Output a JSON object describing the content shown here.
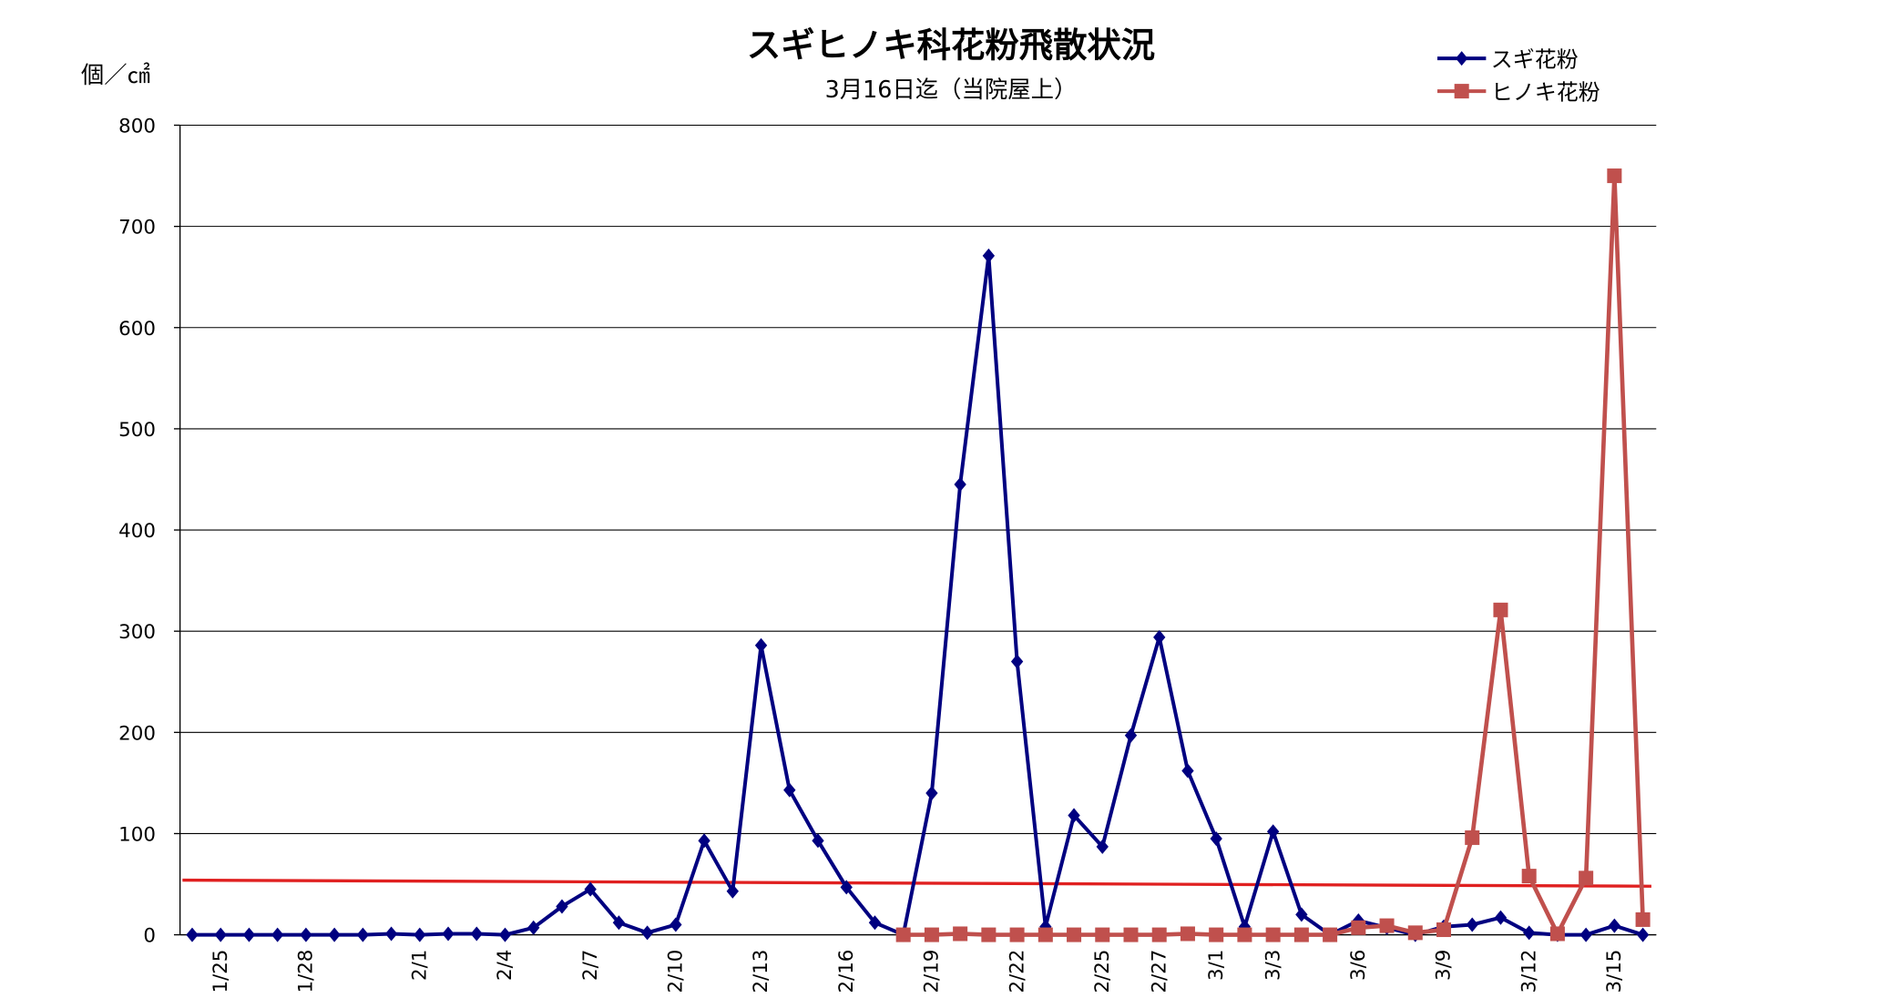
{
  "chart_data": {
    "type": "line",
    "title": "スギヒノキ科花粉飛散状況",
    "subtitle": "3月16日迄（当院屋上）",
    "y_label": "個／㎠",
    "categories": [
      null,
      "1/25",
      null,
      null,
      "1/28",
      null,
      null,
      null,
      "2/1",
      null,
      null,
      "2/4",
      null,
      null,
      "2/7",
      null,
      null,
      "2/10",
      null,
      null,
      "2/13",
      null,
      null,
      "2/16",
      null,
      null,
      "2/19",
      null,
      null,
      "2/22",
      null,
      null,
      "2/25",
      null,
      "2/27",
      null,
      "3/1",
      null,
      "3/3",
      null,
      null,
      "3/6",
      null,
      null,
      "3/9",
      null,
      null,
      "3/12",
      null,
      null,
      "3/15",
      null
    ],
    "series": [
      {
        "name": "スギ花粉",
        "color": "#000080",
        "marker": "diamond",
        "values": [
          0,
          0,
          0,
          0,
          0,
          0,
          0,
          1,
          0,
          1,
          1,
          0,
          7,
          28,
          45,
          12,
          2,
          10,
          93,
          43,
          286,
          143,
          93,
          47,
          12,
          0,
          140,
          445,
          671,
          270,
          8,
          118,
          87,
          197,
          294,
          162,
          95,
          8,
          102,
          20,
          0,
          14,
          7,
          0,
          8,
          10,
          17,
          2,
          0,
          0,
          9,
          0
        ]
      },
      {
        "name": "ヒノキ花粉",
        "color": "#c0504d",
        "marker": "square",
        "values": [
          null,
          null,
          null,
          null,
          null,
          null,
          null,
          null,
          null,
          null,
          null,
          null,
          null,
          null,
          null,
          null,
          null,
          null,
          null,
          null,
          null,
          null,
          null,
          null,
          null,
          0,
          0,
          1,
          0,
          0,
          0,
          0,
          0,
          0,
          0,
          1,
          0,
          0,
          0,
          0,
          0,
          7,
          9,
          2,
          5,
          96,
          321,
          58,
          1,
          56,
          750,
          15
        ]
      }
    ],
    "reference_line": {
      "color": "#e02020",
      "values": [
        54,
        48
      ]
    },
    "ylim": [
      0,
      800
    ],
    "yticks": [
      0,
      100,
      200,
      300,
      400,
      500,
      600,
      700,
      800
    ],
    "grid": true,
    "legend": "top-right"
  }
}
